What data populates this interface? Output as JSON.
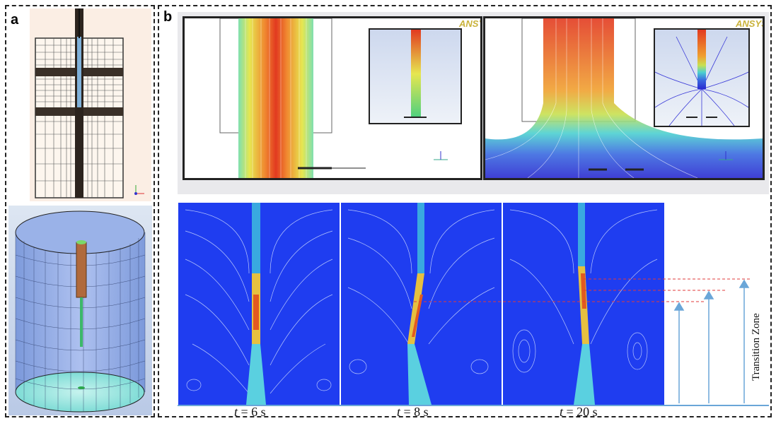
{
  "figure": {
    "panel_a": {
      "label": "a"
    },
    "panel_b": {
      "label": "b"
    },
    "watermark": "ANSYS",
    "time_labels": [
      {
        "t": "t",
        "rest": " = 6 s"
      },
      {
        "t": "t",
        "rest": " = 8 s"
      },
      {
        "t": "t",
        "rest": " = 20 s"
      }
    ],
    "transition_zone_label": "Transition Zone"
  },
  "colors": {
    "mesh_bg": "#fbeee4",
    "flow_blue": "#1f3df0",
    "arrow_blue": "#6aa6d8",
    "dashed_red": "#e23a3a"
  }
}
